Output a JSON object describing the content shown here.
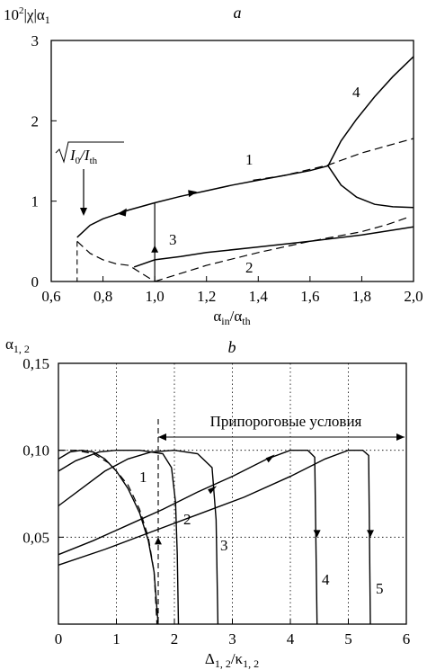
{
  "chart_data": [
    {
      "panel_label": "a",
      "type": "line",
      "ylabel_html_parts": [
        "10",
        "2",
        "|χ|α",
        "1"
      ],
      "xlabel_parts": [
        "α",
        "in",
        "/α",
        "th"
      ],
      "xlim": [
        0.6,
        2.0
      ],
      "ylim": [
        0,
        3
      ],
      "xticks": [
        0.6,
        0.8,
        1.0,
        1.2,
        1.4,
        1.6,
        1.8,
        2.0
      ],
      "xtick_labels": [
        "0,6",
        "0,8",
        "1,0",
        "1,2",
        "1,4",
        "1,6",
        "1,8",
        "2,0"
      ],
      "yticks": [
        0,
        1,
        2,
        3
      ],
      "ytick_labels": [
        "0",
        "1",
        "2",
        "3"
      ],
      "annotation_parts": [
        "I",
        "0",
        "/I",
        "th"
      ],
      "series": [
        {
          "label": "1",
          "style": "solid",
          "x": [
            0.7,
            0.75,
            0.8,
            0.9,
            1.0,
            1.1,
            1.2,
            1.3,
            1.4,
            1.5,
            1.6,
            1.67
          ],
          "y": [
            0.55,
            0.7,
            0.78,
            0.89,
            0.98,
            1.06,
            1.13,
            1.2,
            1.26,
            1.32,
            1.38,
            1.44
          ]
        },
        {
          "label": "1",
          "style": "dashed",
          "x": [
            1.38,
            1.5,
            1.67,
            1.8,
            1.9,
            2.0
          ],
          "y": [
            1.26,
            1.32,
            1.45,
            1.6,
            1.69,
            1.78
          ]
        },
        {
          "label": "1",
          "style": "dashed",
          "x": [
            0.7,
            0.75,
            0.8,
            0.85,
            0.9,
            1.0
          ],
          "y": [
            0.5,
            0.35,
            0.27,
            0.22,
            0.2,
            0.0
          ]
        },
        {
          "label": "2",
          "style": "dashed",
          "x": [
            1.0,
            1.2,
            1.4,
            1.6,
            1.8,
            1.9,
            1.98
          ],
          "y": [
            0.0,
            0.2,
            0.36,
            0.5,
            0.62,
            0.71,
            0.8
          ]
        },
        {
          "label": "3",
          "style": "solid",
          "x": [
            0.92,
            1.0,
            1.1,
            1.2,
            1.4,
            1.6,
            1.8,
            2.0
          ],
          "y": [
            0.18,
            0.27,
            0.31,
            0.36,
            0.43,
            0.5,
            0.58,
            0.68
          ]
        },
        {
          "label": "4",
          "style": "solid",
          "x": [
            1.67,
            1.72,
            1.78,
            1.85,
            1.92,
            2.0
          ],
          "y": [
            1.44,
            1.75,
            2.02,
            2.3,
            2.55,
            2.8
          ]
        },
        {
          "label": "4",
          "style": "solid",
          "x": [
            1.67,
            1.72,
            1.78,
            1.85,
            1.92,
            2.0
          ],
          "y": [
            1.44,
            1.2,
            1.05,
            0.96,
            0.93,
            0.92
          ]
        }
      ]
    },
    {
      "panel_label": "b",
      "type": "line",
      "ylabel_parts": [
        "α",
        "1, 2"
      ],
      "xlabel_parts": [
        "Δ",
        "1, 2",
        "/κ",
        "1, 2"
      ],
      "xlim": [
        0,
        6
      ],
      "ylim": [
        0,
        0.15
      ],
      "xticks": [
        0,
        1,
        2,
        3,
        4,
        5,
        6
      ],
      "xtick_labels": [
        "0",
        "1",
        "2",
        "3",
        "4",
        "5",
        "6"
      ],
      "yticks": [
        0.05,
        0.1,
        0.15
      ],
      "ytick_labels": [
        "0,05",
        "0,10",
        "0,15"
      ],
      "grid": true,
      "threshold_label": "Припороговые условия",
      "threshold_x": 1.72,
      "series": [
        {
          "label": "1",
          "style": "solid",
          "x": [
            0.0,
            0.2,
            0.4,
            0.6,
            0.8,
            1.0,
            1.2,
            1.4,
            1.55,
            1.65,
            1.72
          ],
          "y": [
            0.095,
            0.099,
            0.1,
            0.099,
            0.095,
            0.088,
            0.078,
            0.064,
            0.048,
            0.03,
            0.0
          ]
        },
        {
          "label": "1",
          "style": "dashed",
          "x": [
            0.0,
            0.3,
            0.6,
            0.9,
            1.2,
            1.4,
            1.55,
            1.65,
            1.7
          ],
          "y": [
            0.1,
            0.1,
            0.098,
            0.092,
            0.08,
            0.066,
            0.05,
            0.03,
            0.0
          ]
        },
        {
          "label": "2",
          "style": "solid",
          "x": [
            0.0,
            0.3,
            0.7,
            1.0,
            1.4,
            1.8,
            1.95,
            2.02,
            2.05,
            2.07
          ],
          "y": [
            0.088,
            0.094,
            0.099,
            0.1,
            0.1,
            0.098,
            0.09,
            0.07,
            0.04,
            0.0
          ]
        },
        {
          "label": "3",
          "style": "solid",
          "x": [
            0.0,
            0.4,
            0.8,
            1.2,
            1.6,
            2.0,
            2.4,
            2.65,
            2.72,
            2.75
          ],
          "y": [
            0.068,
            0.078,
            0.088,
            0.095,
            0.099,
            0.1,
            0.098,
            0.09,
            0.06,
            0.0
          ]
        },
        {
          "label": "4",
          "style": "solid",
          "x": [
            0.0,
            0.6,
            1.2,
            1.8,
            2.4,
            3.0,
            3.6,
            4.0,
            4.3,
            4.42,
            4.46
          ],
          "y": [
            0.04,
            0.048,
            0.057,
            0.066,
            0.076,
            0.085,
            0.095,
            0.1,
            0.1,
            0.096,
            0.0
          ]
        },
        {
          "label": "5",
          "style": "solid",
          "x": [
            0.0,
            0.8,
            1.6,
            2.4,
            3.2,
            4.0,
            4.6,
            5.0,
            5.25,
            5.35,
            5.38
          ],
          "y": [
            0.034,
            0.043,
            0.053,
            0.063,
            0.073,
            0.085,
            0.095,
            0.1,
            0.1,
            0.097,
            0.0
          ]
        }
      ]
    }
  ]
}
